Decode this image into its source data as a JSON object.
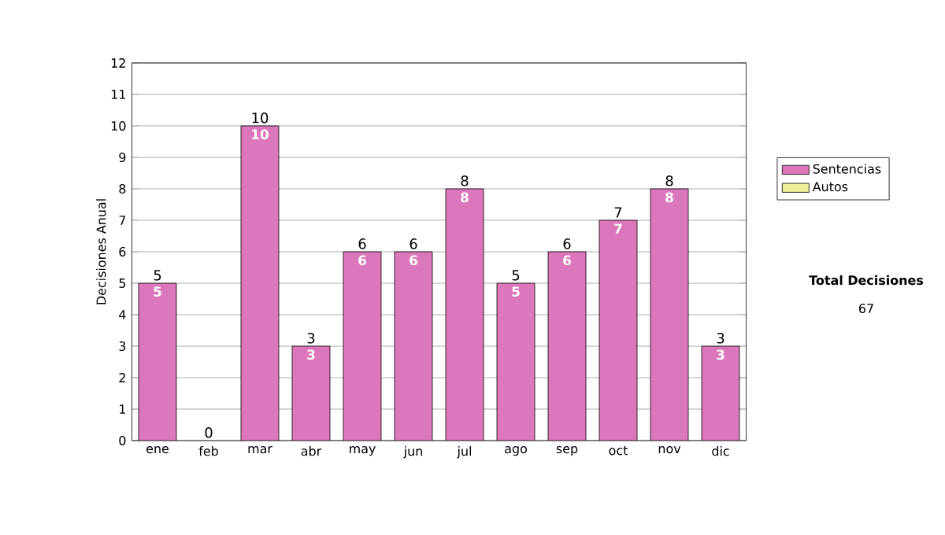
{
  "chart_data": {
    "type": "bar",
    "stacked": true,
    "ylabel": "Decisiones Anual",
    "categories": [
      "ene",
      "feb",
      "mar",
      "abr",
      "may",
      "jun",
      "jul",
      "ago",
      "sep",
      "oct",
      "nov",
      "dic"
    ],
    "series": [
      {
        "name": "Sentencias",
        "color": "#dd77bb",
        "values": [
          5,
          0,
          10,
          3,
          6,
          6,
          8,
          5,
          6,
          7,
          8,
          3
        ],
        "value_labels": [
          "5",
          null,
          "10",
          "3",
          "6",
          "6",
          "8",
          "5",
          "6",
          "7",
          "8",
          "3"
        ]
      },
      {
        "name": "Autos",
        "color": "#eeee99",
        "values": [
          0,
          0,
          0,
          0,
          0,
          0,
          0,
          0,
          0,
          0,
          0,
          0
        ]
      }
    ],
    "totals": [
      "5",
      "0",
      "10",
      "3",
      "6",
      "6",
      "8",
      "5",
      "6",
      "7",
      "8",
      "3"
    ],
    "ylim": [
      0,
      12
    ],
    "yticks": [
      0,
      1,
      2,
      3,
      4,
      5,
      6,
      7,
      8,
      9,
      10,
      11,
      12
    ],
    "grid": "y",
    "legend": "right",
    "annotations": [
      "Total Decisiones",
      "67"
    ]
  }
}
